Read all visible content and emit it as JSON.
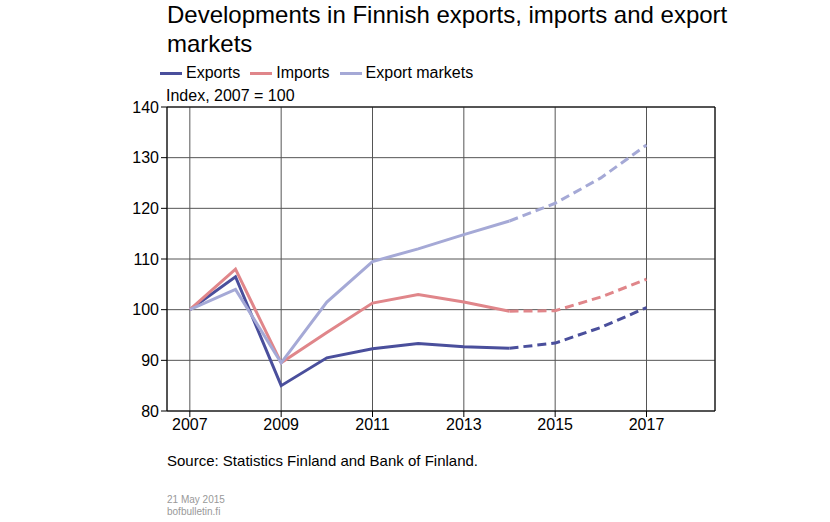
{
  "chart_data": {
    "type": "line",
    "title": "Developments in Finnish exports, imports and export markets",
    "y_label": "Index, 2007 = 100",
    "source": "Source: Statistics Finland and Bank of Finland.",
    "date": "21 May 2015",
    "website": "bofbulletin.fi",
    "x": [
      2007,
      2008,
      2009,
      2010,
      2011,
      2012,
      2013,
      2014,
      2015,
      2016,
      2017
    ],
    "xlim": [
      2006.5,
      2018.5
    ],
    "xticks": [
      2007,
      2009,
      2011,
      2013,
      2015,
      2017
    ],
    "ylim": [
      80,
      140
    ],
    "yticks": [
      80,
      90,
      100,
      110,
      120,
      130,
      140
    ],
    "grid": true,
    "series": [
      {
        "name": "Exports",
        "color": "#4a4f9c",
        "line_style": "solid",
        "values": [
          100,
          106.5,
          85,
          90.5,
          92.3,
          93.3,
          92.7,
          92.4,
          null,
          null,
          null
        ]
      },
      {
        "name": "Exports",
        "color": "#4a4f9c",
        "line_style": "dashed",
        "values": [
          null,
          null,
          null,
          null,
          null,
          null,
          null,
          92.4,
          93.4,
          96.5,
          100.4
        ]
      },
      {
        "name": "Imports",
        "color": "#e0868a",
        "line_style": "solid",
        "values": [
          100,
          108,
          89.5,
          95.5,
          101.3,
          103,
          101.5,
          99.7,
          null,
          null,
          null
        ]
      },
      {
        "name": "Imports",
        "color": "#e0868a",
        "line_style": "dashed",
        "values": [
          null,
          null,
          null,
          null,
          null,
          null,
          null,
          99.7,
          99.8,
          102.5,
          106
        ]
      },
      {
        "name": "Export markets",
        "color": "#a5a9d6",
        "line_style": "solid",
        "values": [
          100,
          104,
          89.5,
          101.5,
          109.5,
          112,
          114.8,
          117.5,
          null,
          null,
          null
        ]
      },
      {
        "name": "Export markets",
        "color": "#a5a9d6",
        "line_style": "dashed",
        "values": [
          null,
          null,
          null,
          null,
          null,
          null,
          null,
          117.5,
          121,
          126,
          132.5
        ]
      }
    ]
  }
}
